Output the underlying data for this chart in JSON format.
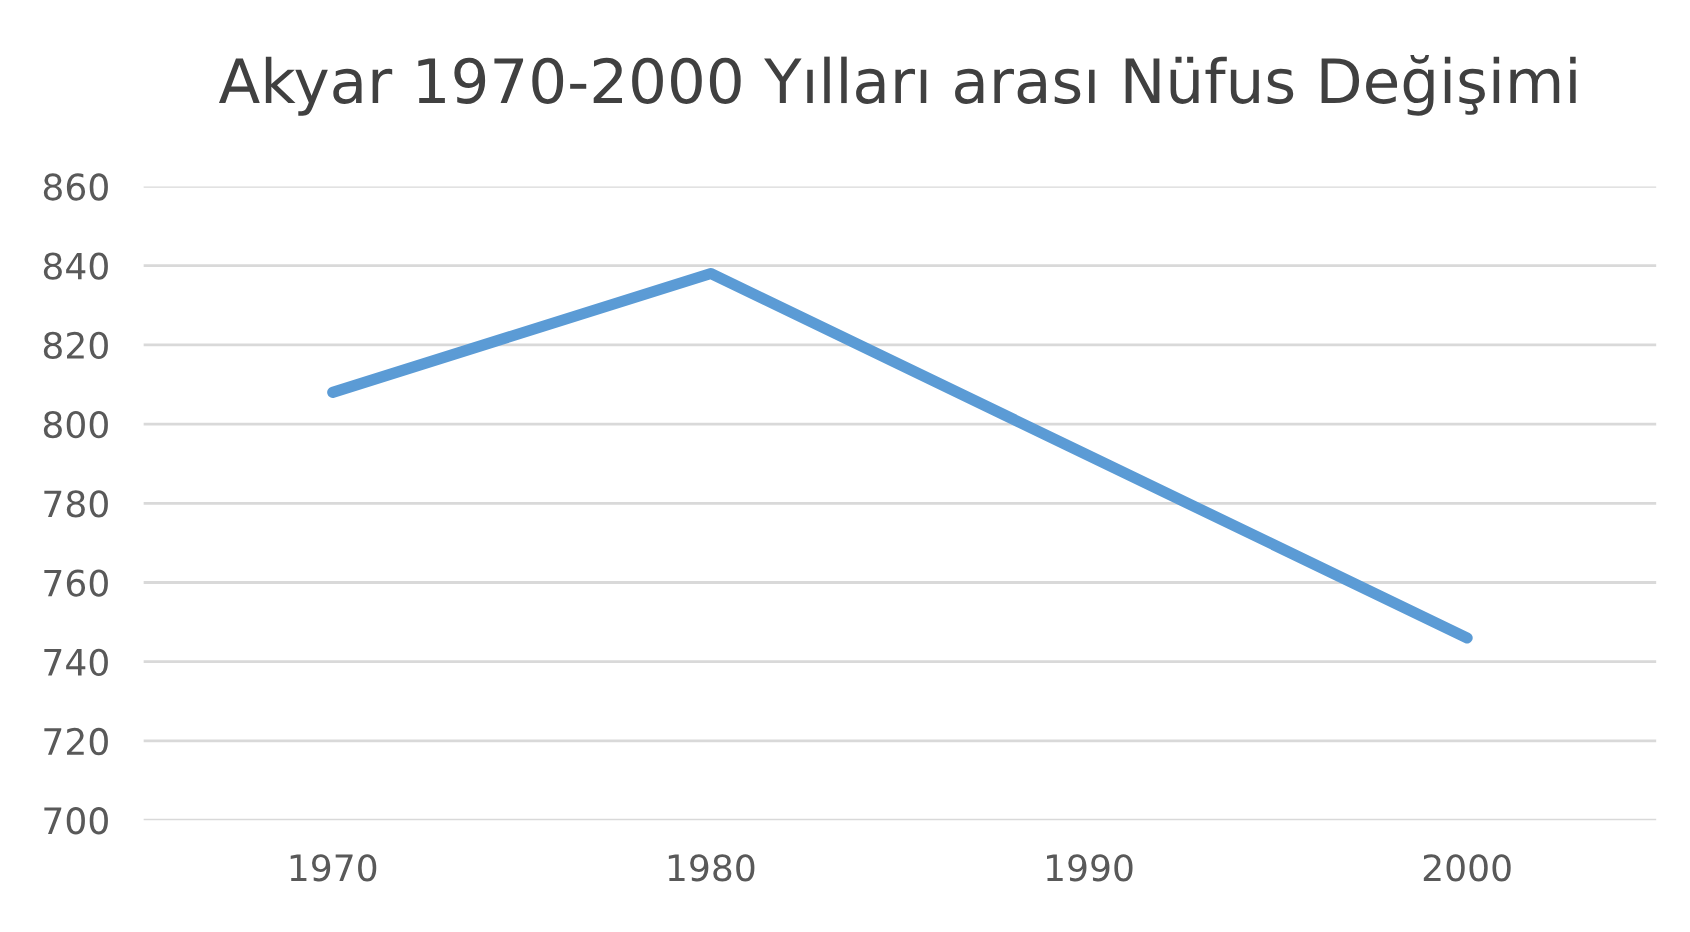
{
  "chart_data": {
    "type": "line",
    "title": "Akyar 1970-2000 Yılları arası Nüfus Değişimi",
    "categories": [
      "1970",
      "1980",
      "1990",
      "2000"
    ],
    "series": [
      {
        "color": "#5b9bd5",
        "values": [
          808,
          838,
          792,
          746
        ]
      }
    ],
    "ylim": [
      700,
      860
    ],
    "yticks": [
      700,
      720,
      740,
      760,
      780,
      800,
      820,
      840,
      860
    ],
    "grid": "y",
    "legend": false,
    "marker": "none",
    "line_style": "solid"
  }
}
